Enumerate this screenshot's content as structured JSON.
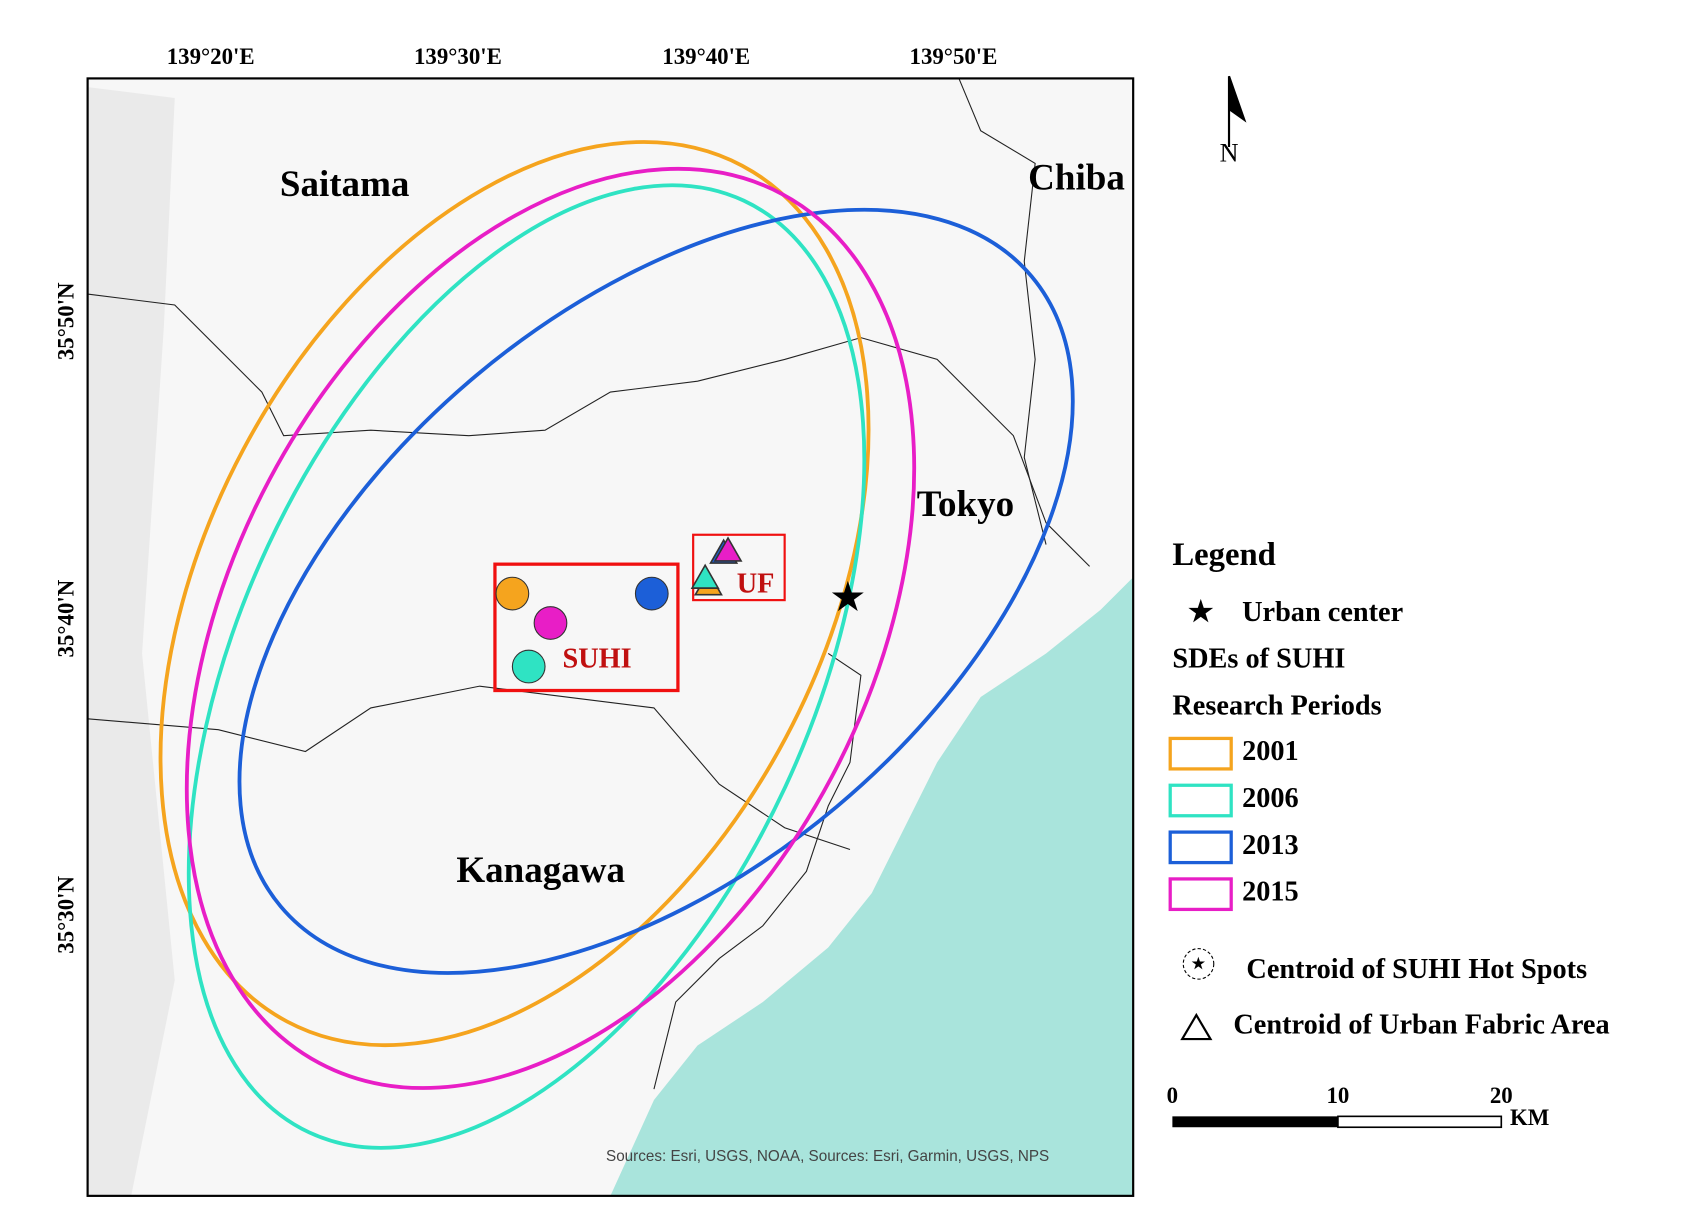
{
  "axes": {
    "top": [
      "139°20'E",
      "139°30'E",
      "139°40'E",
      "139°50'E"
    ],
    "left": [
      "35°50'N",
      "35°40'N",
      "35°30'N"
    ]
  },
  "places": {
    "saitama": "Saitama",
    "chiba": "Chiba",
    "tokyo": "Tokyo",
    "kanagawa": "Kanagawa"
  },
  "boxes": {
    "suhi": "SUHI",
    "uf": "UF"
  },
  "attribution": "Sources: Esri, USGS, NOAA, Sources: Esri, Garmin, USGS, NPS",
  "north": "N",
  "legend": {
    "title": "Legend",
    "urban_center": "Urban center",
    "sde_title": "SDEs of SUHI",
    "periods_title": "Research Periods",
    "periods": [
      {
        "label": "2001",
        "color": "#f5a41e"
      },
      {
        "label": "2006",
        "color": "#2fe3c3"
      },
      {
        "label": "2013",
        "color": "#1c5fd8"
      },
      {
        "label": "2015",
        "color": "#e81ec6"
      }
    ],
    "hotspot": "Centroid of SUHI Hot Spots",
    "fabric": "Centroid of Urban Fabric Area"
  },
  "scale_bar": {
    "ticks": [
      "0",
      "10",
      "20"
    ],
    "unit": "KM"
  }
}
